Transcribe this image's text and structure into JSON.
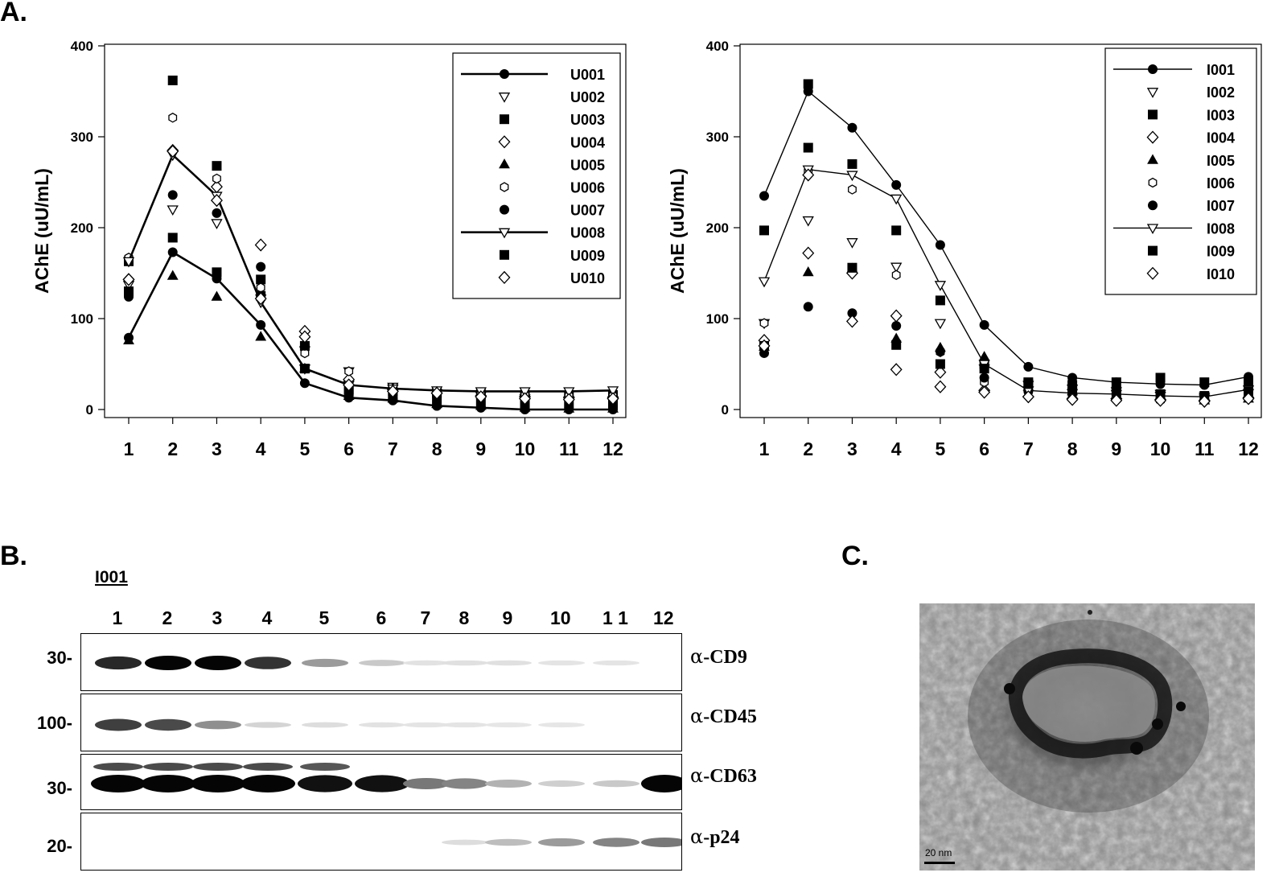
{
  "panels": {
    "a": "A.",
    "b": "B.",
    "c": "C."
  },
  "chart_data": [
    {
      "type": "line",
      "ylabel": "AChE (uU/mL)",
      "xlabel": "",
      "x": [
        1,
        2,
        3,
        4,
        5,
        6,
        7,
        8,
        9,
        10,
        11,
        12
      ],
      "ylim": [
        0,
        400
      ],
      "yticks": [
        0,
        100,
        200,
        300,
        400
      ],
      "legend_position": "top-right",
      "series": [
        {
          "name": "U001",
          "marker": "circle",
          "line": true,
          "values": [
            79,
            173,
            144,
            93,
            29,
            13,
            10,
            4,
            2,
            0,
            0,
            0
          ]
        },
        {
          "name": "U002",
          "marker": "triangle-down",
          "line": false,
          "values": [
            137,
            220,
            205,
            122,
            65,
            42,
            25,
            18,
            15,
            12,
            10,
            10
          ]
        },
        {
          "name": "U003",
          "marker": "square",
          "line": false,
          "values": [
            163,
            362,
            268,
            143,
            70,
            22,
            20,
            18,
            17,
            16,
            15,
            16
          ]
        },
        {
          "name": "U004",
          "marker": "diamond",
          "line": false,
          "values": [
            143,
            285,
            245,
            181,
            86,
            33,
            22,
            18,
            15,
            14,
            13,
            13
          ]
        },
        {
          "name": "U005",
          "marker": "triangle-up",
          "line": false,
          "values": [
            76,
            147,
            124,
            80,
            45,
            15,
            12,
            6,
            4,
            2,
            1,
            1
          ]
        },
        {
          "name": "U006",
          "marker": "hexagon",
          "line": false,
          "values": [
            167,
            321,
            254,
            134,
            62,
            42,
            22,
            20,
            17,
            16,
            15,
            15
          ]
        },
        {
          "name": "U007",
          "marker": "circle",
          "line": false,
          "values": [
            124,
            236,
            216,
            157,
            70,
            13,
            12,
            4,
            2,
            1,
            1,
            1
          ]
        },
        {
          "name": "U008",
          "marker": "triangle-down",
          "line": true,
          "values": [
            163,
            280,
            235,
            118,
            45,
            27,
            23,
            21,
            20,
            20,
            20,
            21
          ]
        },
        {
          "name": "U009",
          "marker": "square",
          "line": false,
          "values": [
            130,
            189,
            151,
            125,
            45,
            20,
            14,
            11,
            8,
            7,
            7,
            7
          ]
        },
        {
          "name": "U010",
          "marker": "diamond",
          "line": false,
          "values": [
            143,
            284,
            230,
            122,
            80,
            27,
            20,
            18,
            14,
            12,
            11,
            12
          ]
        }
      ]
    },
    {
      "type": "line",
      "ylabel": "AChE (uU/mL)",
      "xlabel": "",
      "x": [
        1,
        2,
        3,
        4,
        5,
        6,
        7,
        8,
        9,
        10,
        11,
        12
      ],
      "ylim": [
        0,
        400
      ],
      "yticks": [
        0,
        100,
        200,
        300,
        400
      ],
      "legend_position": "top-right",
      "series": [
        {
          "name": "I001",
          "marker": "circle",
          "line": true,
          "values": [
            235,
            350,
            310,
            247,
            181,
            93,
            47,
            35,
            30,
            28,
            27,
            36
          ]
        },
        {
          "name": "I002",
          "marker": "triangle-down",
          "line": false,
          "values": [
            95,
            208,
            184,
            157,
            95,
            45,
            27,
            23,
            20,
            17,
            12,
            18
          ]
        },
        {
          "name": "I003",
          "marker": "square",
          "line": false,
          "values": [
            197,
            288,
            270,
            197,
            120,
            50,
            30,
            27,
            30,
            35,
            30,
            31
          ]
        },
        {
          "name": "I004",
          "marker": "diamond",
          "line": false,
          "values": [
            76,
            172,
            150,
            103,
            41,
            21,
            14,
            12,
            12,
            11,
            10,
            13
          ]
        },
        {
          "name": "I005",
          "marker": "triangle-up",
          "line": false,
          "values": [
            69,
            151,
            155,
            78,
            68,
            58,
            25,
            20,
            15,
            13,
            10,
            12
          ]
        },
        {
          "name": "I006",
          "marker": "hexagon",
          "line": false,
          "values": [
            95,
            262,
            242,
            148,
            63,
            30,
            20,
            15,
            12,
            10,
            9,
            12
          ]
        },
        {
          "name": "I007",
          "marker": "circle",
          "line": false,
          "values": [
            62,
            113,
            106,
            92,
            64,
            35,
            20,
            17,
            14,
            12,
            10,
            16
          ]
        },
        {
          "name": "I008",
          "marker": "triangle-down",
          "line": true,
          "values": [
            141,
            264,
            258,
            232,
            137,
            50,
            21,
            18,
            17,
            15,
            14,
            22
          ]
        },
        {
          "name": "I009",
          "marker": "square",
          "line": false,
          "values": [
            70,
            358,
            156,
            71,
            50,
            45,
            28,
            22,
            20,
            17,
            15,
            20
          ]
        },
        {
          "name": "I010",
          "marker": "diamond",
          "line": false,
          "values": [
            70,
            258,
            97,
            44,
            25,
            19,
            14,
            11,
            10,
            10,
            9,
            12
          ]
        }
      ]
    }
  ],
  "blot": {
    "sample": "I001",
    "lanes": [
      "1",
      "2",
      "3",
      "4",
      "5",
      "6",
      "7",
      "8",
      "9",
      "10",
      "1 1",
      "12"
    ],
    "rows": [
      {
        "antibody_greek": "α",
        "antibody": "-CD9",
        "marker": "30-",
        "band_intensity": [
          0.85,
          1.0,
          1.0,
          0.8,
          0.35,
          0.15,
          0.04,
          0.05,
          0.05,
          0.03,
          0.03,
          0.0
        ]
      },
      {
        "antibody_greek": "α",
        "antibody": "-CD45",
        "marker": "100-",
        "band_intensity": [
          0.75,
          0.7,
          0.4,
          0.1,
          0.06,
          0.04,
          0.03,
          0.03,
          0.02,
          0.02,
          0.0,
          0.0
        ]
      },
      {
        "antibody_greek": "α",
        "antibody": "-CD63",
        "marker": "30-",
        "band_intensity": [
          1.0,
          1.0,
          1.0,
          1.0,
          0.95,
          0.95,
          0.5,
          0.45,
          0.25,
          0.12,
          0.15,
          1.0
        ]
      },
      {
        "antibody_greek": "α",
        "antibody": "-p24",
        "marker": "20-",
        "band_intensity": [
          0.0,
          0.0,
          0.0,
          0.0,
          0.0,
          0.0,
          0.0,
          0.06,
          0.2,
          0.35,
          0.45,
          0.5
        ]
      }
    ]
  },
  "em": {
    "scale_bar": "20 nm"
  }
}
